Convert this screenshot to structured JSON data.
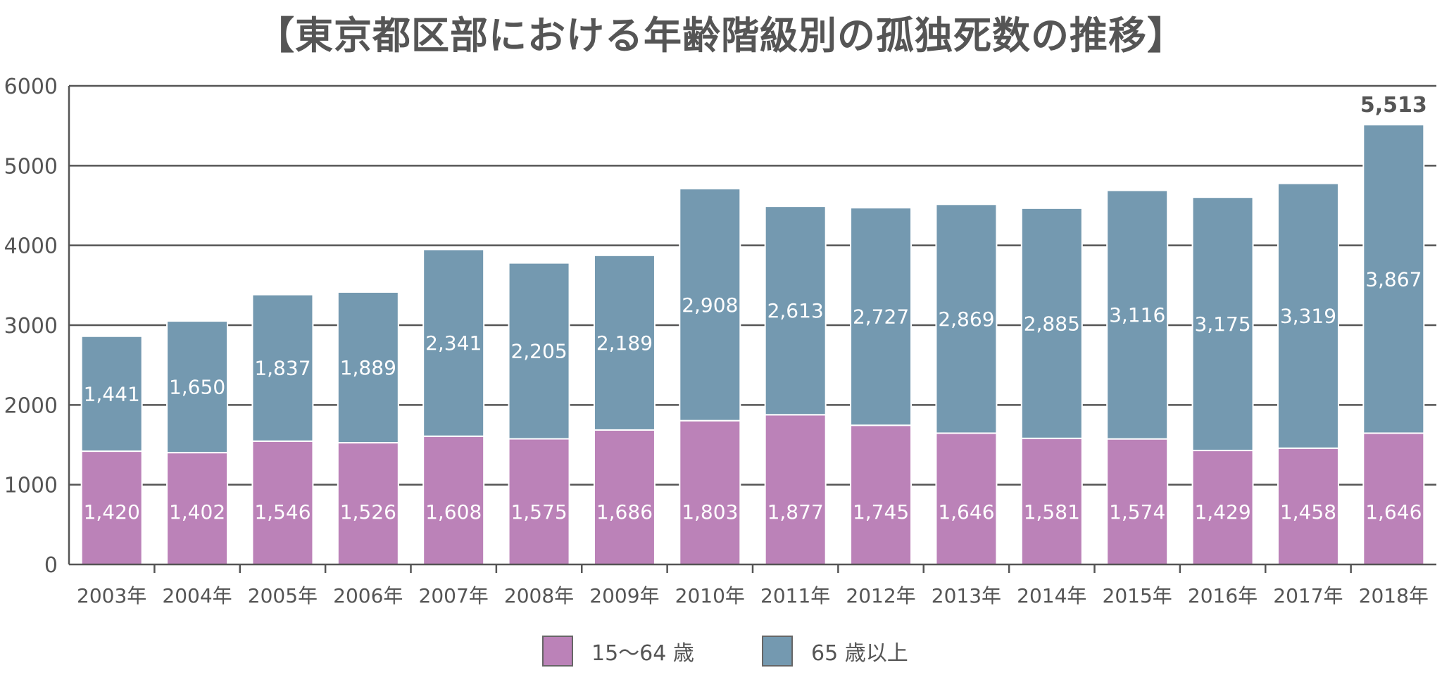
{
  "chart_data": {
    "type": "bar",
    "stacked": true,
    "title": "【東京都区部における年齢階級別の孤独死数の推移】",
    "categories": [
      "2003年",
      "2004年",
      "2005年",
      "2006年",
      "2007年",
      "2008年",
      "2009年",
      "2010年",
      "2011年",
      "2012年",
      "2013年",
      "2014年",
      "2015年",
      "2016年",
      "2017年",
      "2018年"
    ],
    "series": [
      {
        "name": "15～64 歳",
        "color": "#bb82b8",
        "values": [
          1420,
          1402,
          1546,
          1526,
          1608,
          1575,
          1686,
          1803,
          1877,
          1745,
          1646,
          1581,
          1574,
          1429,
          1458,
          1646
        ],
        "labels": [
          "1,420",
          "1,402",
          "1,546",
          "1,526",
          "1,608",
          "1,575",
          "1,686",
          "1,803",
          "1,877",
          "1,745",
          "1,646",
          "1,581",
          "1,574",
          "1,429",
          "1,458",
          "1,646"
        ]
      },
      {
        "name": "65 歳以上",
        "color": "#7499b0",
        "values": [
          1441,
          1650,
          1837,
          1889,
          2341,
          2205,
          2189,
          2908,
          2613,
          2727,
          2869,
          2885,
          3116,
          3175,
          3319,
          3867
        ],
        "labels": [
          "1,441",
          "1,650",
          "1,837",
          "1,889",
          "2,341",
          "2,205",
          "2,189",
          "2,908",
          "2,613",
          "2,727",
          "2,869",
          "2,885",
          "3,116",
          "3,175",
          "3,319",
          "3,867"
        ]
      }
    ],
    "annotations": [
      {
        "category": "2018年",
        "text": "5,513"
      }
    ],
    "yticks": [
      "0",
      "1000",
      "2000",
      "3000",
      "4000",
      "5000",
      "6000"
    ],
    "ylim": [
      0,
      6000
    ],
    "grid": true,
    "legend": "bottom"
  }
}
